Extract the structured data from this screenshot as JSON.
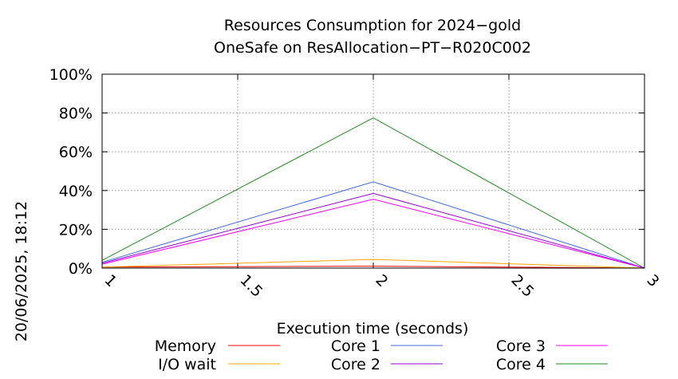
{
  "chart_data": {
    "type": "line",
    "title": "Resources Consumption for 2024−gold",
    "subtitle": "OneSafe on ResAllocation−PT−R020C002",
    "xlabel": "Execution time (seconds)",
    "ylabel": "",
    "timestamp": "20/06/2025, 18:12",
    "x": [
      1,
      2,
      3
    ],
    "x_ticks": [
      "1",
      "1.5",
      "2",
      "2.5",
      "3"
    ],
    "x_tick_values": [
      1,
      1.5,
      2,
      2.5,
      3
    ],
    "y_ticks": [
      "0%",
      "20%",
      "40%",
      "60%",
      "80%",
      "100%"
    ],
    "y_tick_values": [
      0,
      20,
      40,
      60,
      80,
      100
    ],
    "xlim": [
      1,
      3
    ],
    "ylim": [
      0,
      100
    ],
    "grid": true,
    "legend_position": "bottom",
    "series": [
      {
        "name": "Memory",
        "color": "#ff0000",
        "values": [
          0.5,
          1.0,
          0.0
        ]
      },
      {
        "name": "I/O wait",
        "color": "#ffa500",
        "values": [
          0.5,
          4.5,
          0.0
        ]
      },
      {
        "name": "Core 1",
        "color": "#4169e1",
        "values": [
          3.0,
          44.5,
          0.0
        ]
      },
      {
        "name": "Core 2",
        "color": "#9400d3",
        "values": [
          2.5,
          38.5,
          0.0
        ]
      },
      {
        "name": "Core 3",
        "color": "#ff00ff",
        "values": [
          2.0,
          35.5,
          0.0
        ]
      },
      {
        "name": "Core 4",
        "color": "#228b22",
        "values": [
          4.0,
          77.5,
          0.0
        ]
      }
    ]
  }
}
